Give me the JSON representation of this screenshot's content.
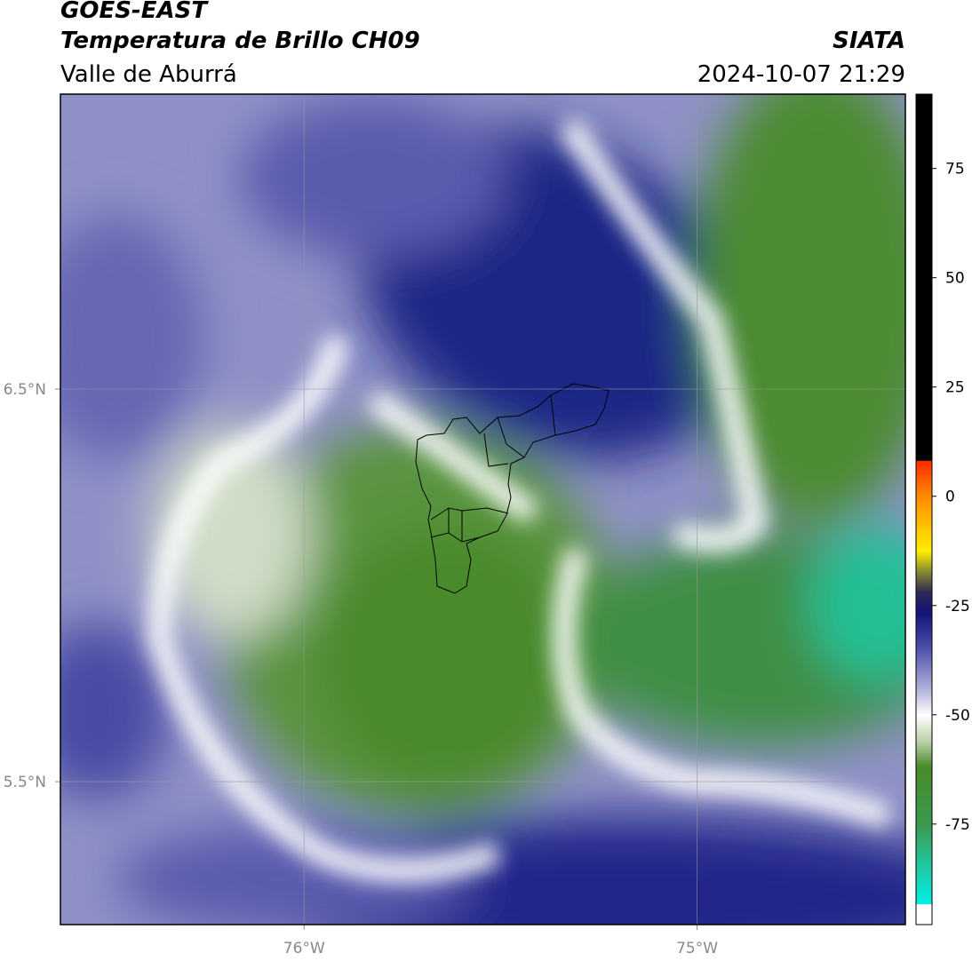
{
  "map": {
    "title": "GOES-EAST",
    "subtitle": "Temperatura de Brillo CH09",
    "region": "Valle de Aburrá",
    "source": "SIATA",
    "datetime": "2024-10-07 21:29",
    "lonlim": [
      -76.62,
      -74.47
    ],
    "latlim": [
      5.136,
      7.251
    ],
    "lon_ticks": [
      {
        "value": -76,
        "label": "76°W"
      },
      {
        "value": -75,
        "label": "75°W"
      }
    ],
    "lat_ticks": [
      {
        "value": 6.5,
        "label": "6.5°N"
      },
      {
        "value": 5.5,
        "label": "5.5°N"
      }
    ],
    "colorbar": {
      "lim": [
        -98,
        92
      ],
      "ticks": [
        75,
        50,
        25,
        0,
        -25,
        -50,
        -75
      ]
    }
  }
}
